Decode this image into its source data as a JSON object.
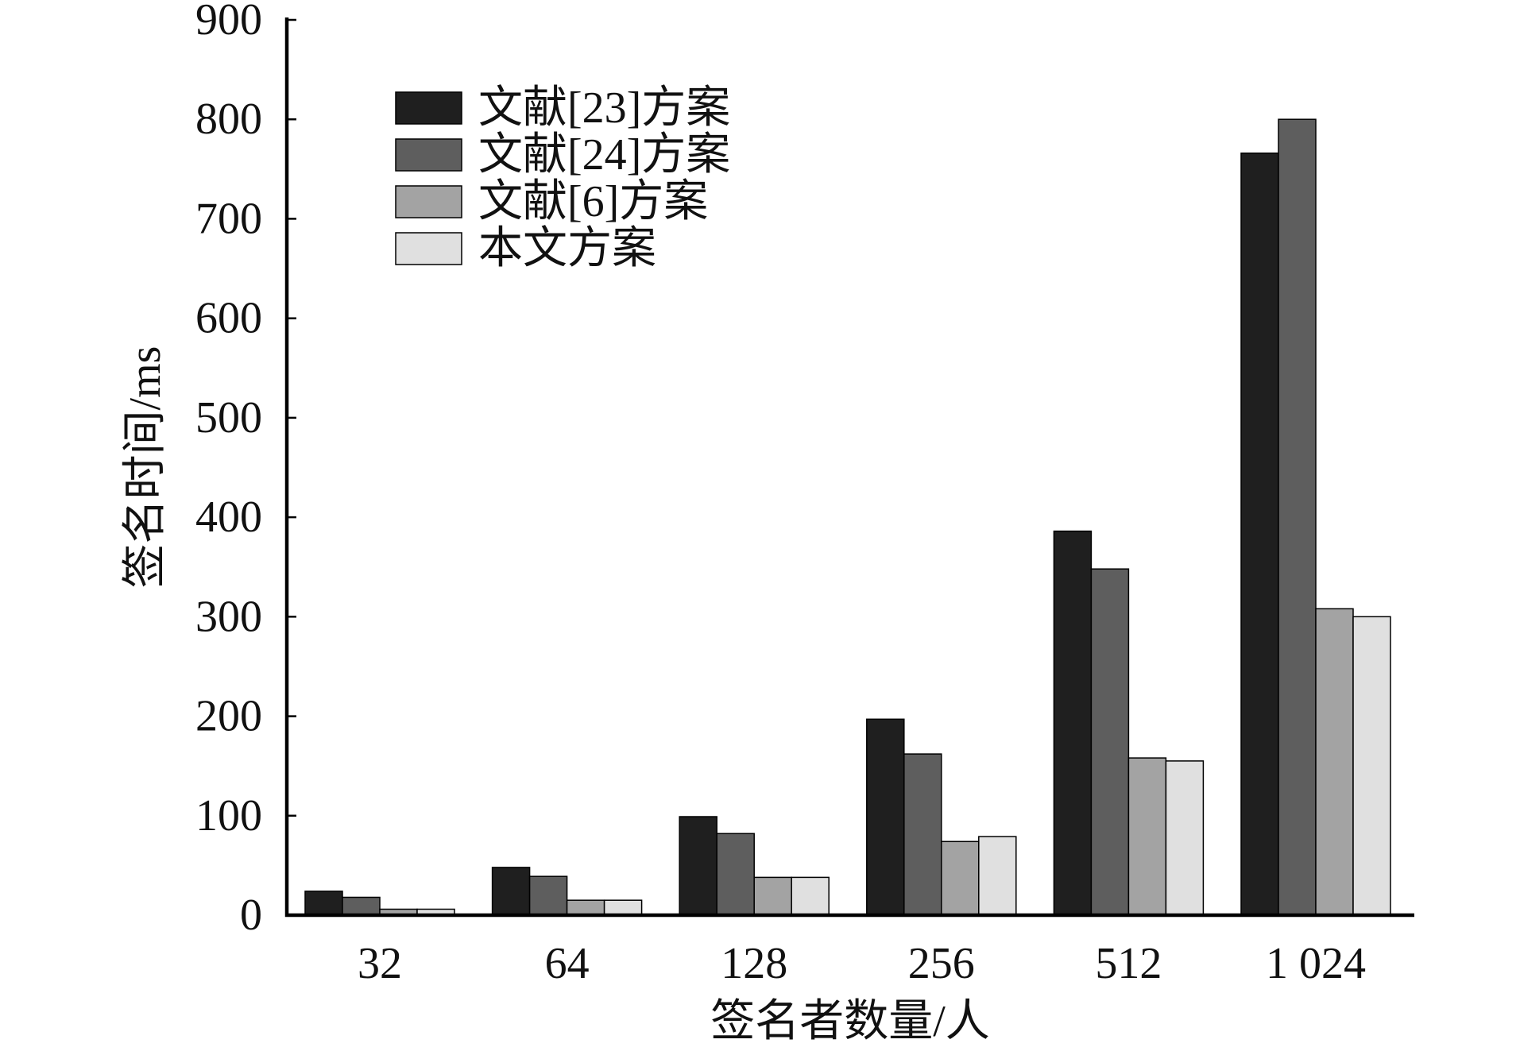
{
  "chart_data": {
    "type": "bar",
    "xlabel": "签名者数量/人",
    "ylabel": "签名时间/ms",
    "categories": [
      "32",
      "64",
      "128",
      "256",
      "512",
      "1 024"
    ],
    "series": [
      {
        "name": "文献[23]方案",
        "color": "#1f1f1f",
        "values": [
          24,
          48,
          99,
          197,
          386,
          766
        ]
      },
      {
        "name": "文献[24]方案",
        "color": "#5e5e5e",
        "values": [
          18,
          39,
          82,
          162,
          348,
          800
        ]
      },
      {
        "name": "文献[6]方案",
        "color": "#a3a3a3",
        "values": [
          6,
          15,
          38,
          74,
          158,
          308
        ]
      },
      {
        "name": "本文方案",
        "color": "#e0e0e0",
        "values": [
          6,
          15,
          38,
          79,
          155,
          300
        ]
      }
    ],
    "ylim": [
      0,
      900
    ],
    "yticks": [
      0,
      100,
      200,
      300,
      400,
      500,
      600,
      700,
      800,
      900
    ],
    "grid": false,
    "legend": "top-left"
  }
}
